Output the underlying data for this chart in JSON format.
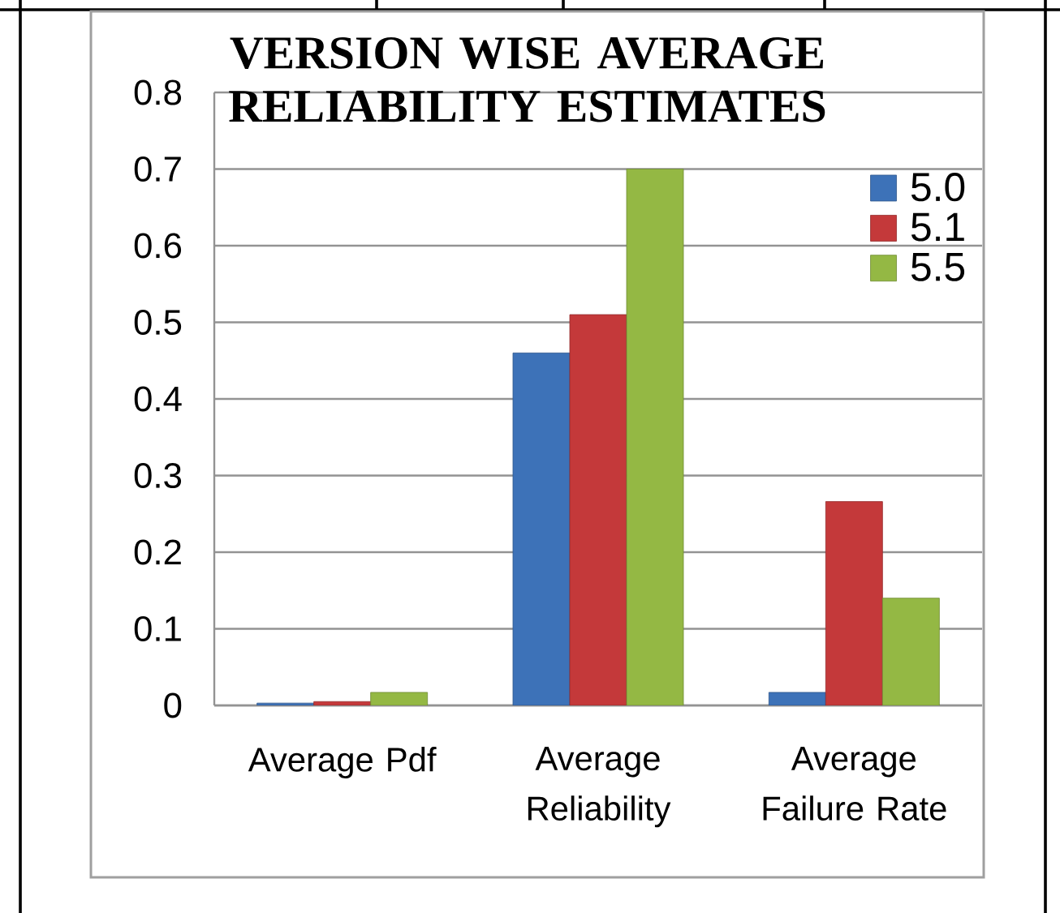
{
  "chart_data": {
    "type": "bar",
    "title": "VERSION WISE AVERAGE RELIABILITY ESTIMATES",
    "categories": [
      "Average Pdf",
      "Average Reliability",
      "Average Failure Rate"
    ],
    "series": [
      {
        "name": "5.0",
        "color": "#3d72b8",
        "values": [
          0.003,
          0.46,
          0.017
        ]
      },
      {
        "name": "5.1",
        "color": "#c4393a",
        "values": [
          0.005,
          0.51,
          0.266
        ]
      },
      {
        "name": "5.5",
        "color": "#94b844",
        "values": [
          0.017,
          0.7,
          0.14
        ]
      }
    ],
    "ylim": [
      0,
      0.8
    ],
    "yticks": [
      0,
      0.1,
      0.2,
      0.3,
      0.4,
      0.5,
      0.6,
      0.7,
      0.8
    ],
    "grid": "y",
    "legend": "top right"
  }
}
